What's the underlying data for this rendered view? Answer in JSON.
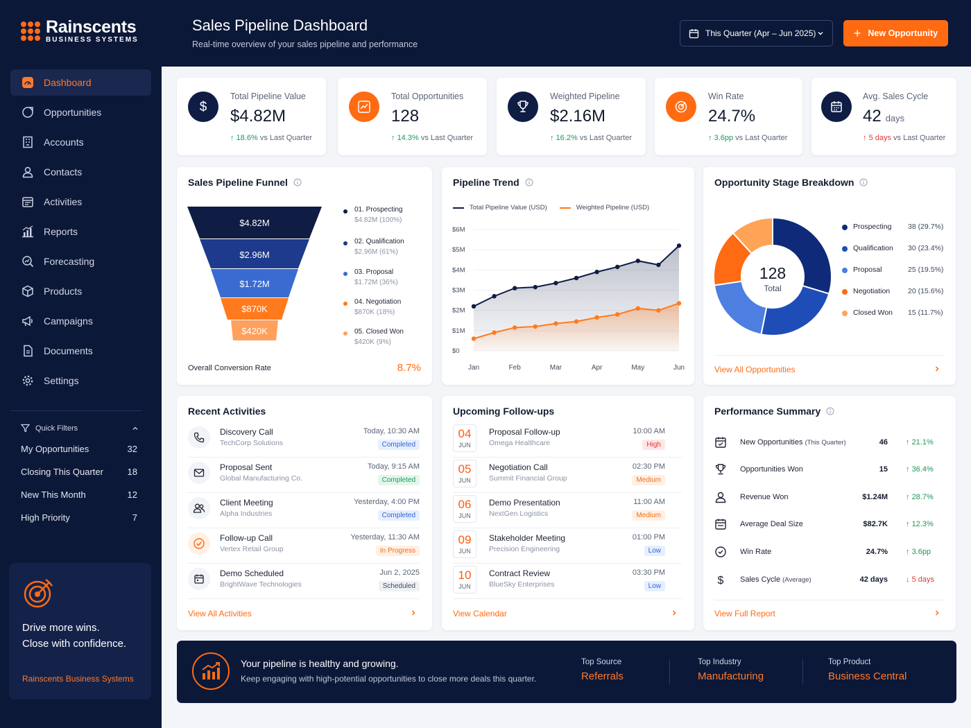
{
  "brand": {
    "name": "Rainscents",
    "sub": "BUSINESS SYSTEMS"
  },
  "nav": [
    {
      "label": "Dashboard",
      "icon": "dashboard-icon"
    },
    {
      "label": "Opportunities",
      "icon": "target-icon"
    },
    {
      "label": "Accounts",
      "icon": "building-icon"
    },
    {
      "label": "Contacts",
      "icon": "user-icon"
    },
    {
      "label": "Activities",
      "icon": "calendar-check-icon"
    },
    {
      "label": "Reports",
      "icon": "bar-chart-icon"
    },
    {
      "label": "Forecasting",
      "icon": "magnifier-chart-icon"
    },
    {
      "label": "Products",
      "icon": "box-icon"
    },
    {
      "label": "Campaigns",
      "icon": "megaphone-icon"
    },
    {
      "label": "Documents",
      "icon": "document-icon"
    },
    {
      "label": "Settings",
      "icon": "gear-icon"
    }
  ],
  "quick_filters": {
    "title": "Quick Filters",
    "items": [
      {
        "label": "My Opportunities",
        "count": "32"
      },
      {
        "label": "Closing This Quarter",
        "count": "18"
      },
      {
        "label": "New This Month",
        "count": "12"
      },
      {
        "label": "High Priority",
        "count": "7"
      }
    ]
  },
  "promo": {
    "line1": "Drive more wins.",
    "line2": "Close with confidence.",
    "brand": "Rainscents Business Systems"
  },
  "header": {
    "title": "Sales Pipeline Dashboard",
    "subtitle": "Real-time overview of your sales pipeline and performance",
    "date_range": "This Quarter (Apr – Jun 2025)",
    "new_button": "New Opportunity"
  },
  "kpis": [
    {
      "label": "Total Pipeline Value",
      "value": "$4.82M",
      "unit": "",
      "change": "18.6%",
      "dir": "up",
      "suffix": "vs Last Quarter"
    },
    {
      "label": "Total Opportunities",
      "value": "128",
      "unit": "",
      "change": "14.3%",
      "dir": "up",
      "suffix": "vs Last Quarter"
    },
    {
      "label": "Weighted Pipeline",
      "value": "$2.16M",
      "unit": "",
      "change": "16.2%",
      "dir": "up",
      "suffix": "vs Last Quarter"
    },
    {
      "label": "Win Rate",
      "value": "24.7%",
      "unit": "",
      "change": "3.6pp",
      "dir": "up",
      "suffix": "vs Last Quarter"
    },
    {
      "label": "Avg. Sales Cycle",
      "value": "42",
      "unit": "days",
      "change": "5 days",
      "dir": "down",
      "suffix": "vs Last Quarter"
    }
  ],
  "funnel": {
    "title": "Sales Pipeline Funnel",
    "stages": [
      {
        "value": "$4.82M",
        "name": "01. Prospecting",
        "detail": "$4.82M (100%)",
        "color": "#0f1d45"
      },
      {
        "value": "$2.96M",
        "name": "02. Qualification",
        "detail": "$2.96M (61%)",
        "color": "#1d3a8c"
      },
      {
        "value": "$1.72M",
        "name": "03. Proposal",
        "detail": "$1.72M (36%)",
        "color": "#3a6bd0"
      },
      {
        "value": "$870K",
        "name": "04. Negotiation",
        "detail": "$870K (18%)",
        "color": "#ff7a1c"
      },
      {
        "value": "$420K",
        "name": "05. Closed Won",
        "detail": "$420K (9%)",
        "color": "#ffa05c"
      }
    ],
    "conversion_label": "Overall Conversion Rate",
    "conversion_value": "8.7%"
  },
  "chart_data": {
    "type": "line",
    "title": "Pipeline Trend",
    "categories": [
      "Jan",
      "Feb",
      "Mar",
      "Apr",
      "May",
      "Jun"
    ],
    "x": [
      "Jan",
      "",
      "Feb",
      "",
      "Mar",
      "",
      "Apr",
      "",
      "May",
      "",
      "Jun"
    ],
    "y_ticks": [
      "$0",
      "$1M",
      "$2M",
      "$3M",
      "$4M",
      "$5M",
      "$6M"
    ],
    "ylim": [
      0,
      6
    ],
    "series": [
      {
        "name": "Total Pipeline Value (USD)",
        "color": "#0f1d45",
        "values": [
          2.2,
          2.7,
          3.1,
          3.15,
          3.35,
          3.6,
          3.9,
          4.15,
          4.45,
          4.25,
          5.2
        ]
      },
      {
        "name": "Weighted Pipeline (USD)",
        "color": "#ff7a1c",
        "values": [
          0.6,
          0.9,
          1.15,
          1.2,
          1.35,
          1.45,
          1.65,
          1.8,
          2.1,
          2.0,
          2.35
        ]
      }
    ]
  },
  "stage_breakdown": {
    "title": "Opportunity Stage Breakdown",
    "total": "128",
    "total_label": "Total",
    "slices": [
      {
        "name": "Prospecting",
        "value": 38,
        "label": "38 (29.7%)",
        "color": "#0f2a78"
      },
      {
        "name": "Qualification",
        "value": 30,
        "label": "30 (23.4%)",
        "color": "#1f4db8"
      },
      {
        "name": "Proposal",
        "value": 25,
        "label": "25 (19.5%)",
        "color": "#4d7fe0"
      },
      {
        "name": "Negotiation",
        "value": 20,
        "label": "20 (15.6%)",
        "color": "#ff6b12"
      },
      {
        "name": "Closed Won",
        "value": 15,
        "label": "15 (11.7%)",
        "color": "#ffa356"
      }
    ],
    "link": "View All Opportunities"
  },
  "activities": {
    "title": "Recent Activities",
    "items": [
      {
        "title": "Discovery Call",
        "company": "TechCorp Solutions",
        "time": "Today, 10:30 AM",
        "status": "Completed",
        "badge": "b-blue",
        "icon": "phone-icon"
      },
      {
        "title": "Proposal Sent",
        "company": "Global Manufacturing Co.",
        "time": "Today, 9:15 AM",
        "status": "Completed",
        "badge": "b-green",
        "icon": "mail-icon"
      },
      {
        "title": "Client Meeting",
        "company": "Alpha Industries",
        "time": "Yesterday, 4:00 PM",
        "status": "Completed",
        "badge": "b-blue",
        "icon": "users-icon"
      },
      {
        "title": "Follow-up Call",
        "company": "Vertex Retail Group",
        "time": "Yesterday, 11:30 AM",
        "status": "In Progress",
        "badge": "b-orange",
        "icon": "check-circle-icon"
      },
      {
        "title": "Demo Scheduled",
        "company": "BrightWave Technologies",
        "time": "Jun 2, 2025",
        "status": "Scheduled",
        "badge": "b-gray",
        "icon": "calendar-icon"
      }
    ],
    "link": "View All Activities"
  },
  "followups": {
    "title": "Upcoming Follow-ups",
    "items": [
      {
        "day": "04",
        "month": "JUN",
        "title": "Proposal Follow-up",
        "company": "Omega Healthcare",
        "time": "10:00 AM",
        "priority": "High",
        "badge": "b-red"
      },
      {
        "day": "05",
        "month": "JUN",
        "title": "Negotiation Call",
        "company": "Summit Financial Group",
        "time": "02:30 PM",
        "priority": "Medium",
        "badge": "b-orange"
      },
      {
        "day": "06",
        "month": "JUN",
        "title": "Demo Presentation",
        "company": "NextGen Logistics",
        "time": "11:00 AM",
        "priority": "Medium",
        "badge": "b-orange"
      },
      {
        "day": "09",
        "month": "JUN",
        "title": "Stakeholder Meeting",
        "company": "Precision Engineering",
        "time": "01:00 PM",
        "priority": "Low",
        "badge": "b-blue"
      },
      {
        "day": "10",
        "month": "JUN",
        "title": "Contract Review",
        "company": "BlueSky Enterprises",
        "time": "03:30 PM",
        "priority": "Low",
        "badge": "b-blue"
      }
    ],
    "link": "View Calendar"
  },
  "performance": {
    "title": "Performance Summary",
    "items": [
      {
        "name": "New Opportunities",
        "qualifier": "(This Quarter)",
        "value": "46",
        "change": "21.1%",
        "dir": "up",
        "icon": "calendar-plus-icon"
      },
      {
        "name": "Opportunities Won",
        "qualifier": "",
        "value": "15",
        "change": "36.4%",
        "dir": "up",
        "icon": "trophy-icon"
      },
      {
        "name": "Revenue Won",
        "qualifier": "",
        "value": "$1.24M",
        "change": "28.7%",
        "dir": "up",
        "icon": "user-icon"
      },
      {
        "name": "Average Deal Size",
        "qualifier": "",
        "value": "$82.7K",
        "change": "12.3%",
        "dir": "up",
        "icon": "calendar-icon"
      },
      {
        "name": "Win Rate",
        "qualifier": "",
        "value": "24.7%",
        "change": "3.6pp",
        "dir": "up",
        "icon": "clock-icon"
      },
      {
        "name": "Sales Cycle",
        "qualifier": "(Average)",
        "value": "42 days",
        "change": "5 days",
        "dir": "down",
        "icon": "dollar-icon"
      }
    ],
    "link": "View Full Report"
  },
  "banner": {
    "title": "Your pipeline is healthy and growing.",
    "subtitle": "Keep engaging with high-potential opportunities to close more deals this quarter.",
    "cells": [
      {
        "label": "Top Source",
        "value": "Referrals"
      },
      {
        "label": "Top Industry",
        "value": "Manufacturing"
      },
      {
        "label": "Top Product",
        "value": "Business Central"
      }
    ]
  }
}
